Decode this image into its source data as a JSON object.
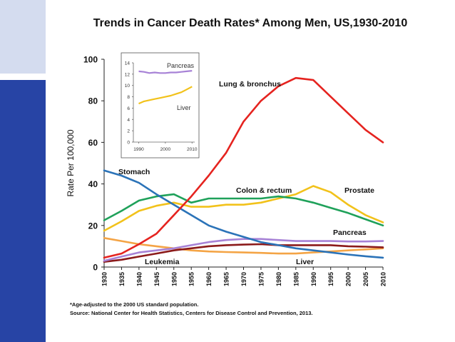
{
  "page": {
    "title": "Trends in Cancer Death Rates* Among Men, US,1930-2010",
    "footnote": "*Age-adjusted to the 2000 US standard population.",
    "source": "Source:  National Center for Health Statistics, Centers for Disease Control and Prevention, 2013."
  },
  "chart_data": [
    {
      "type": "line",
      "title": "Trends in Cancer Death Rates* Among Men, US,1930-2010",
      "xlabel": "",
      "ylabel": "Rate Per 100,000",
      "xlim": [
        1930,
        2010
      ],
      "ylim": [
        0,
        100
      ],
      "x_ticks": [
        "1930",
        "1935",
        "1940",
        "1945",
        "1950",
        "1955",
        "1960",
        "1965",
        "1970",
        "1975",
        "1980",
        "1985",
        "1990",
        "1995",
        "2000",
        "2005",
        "2010"
      ],
      "y_ticks": [
        "0",
        "20",
        "40",
        "60",
        "80",
        "100"
      ],
      "grid": false,
      "x": [
        1930,
        1935,
        1940,
        1945,
        1950,
        1955,
        1960,
        1965,
        1970,
        1975,
        1980,
        1985,
        1990,
        1995,
        2000,
        2005,
        2010
      ],
      "series": [
        {
          "name": "Lung & bronchus",
          "label": "Lung & bronchus",
          "color": "#e5231f",
          "values": [
            4.5,
            6.5,
            11,
            16,
            25,
            34,
            44,
            55,
            70,
            80,
            87,
            91,
            90,
            82,
            74,
            66,
            60
          ]
        },
        {
          "name": "Stomach",
          "label": "Stomach",
          "color": "#2b73b8",
          "values": [
            46.5,
            44,
            40.5,
            35,
            30,
            25,
            20,
            17,
            14.5,
            12,
            10.5,
            9,
            8,
            7,
            6,
            5.2,
            4.5
          ]
        },
        {
          "name": "Colon & rectum",
          "label": "Colon & rectum",
          "color": "#1fa15a",
          "values": [
            22.5,
            27,
            32,
            34,
            35,
            31,
            33,
            33,
            33,
            33,
            34,
            33,
            31,
            28.5,
            26,
            23,
            20
          ]
        },
        {
          "name": "Prostate",
          "label": "Prostate",
          "color": "#f2c21b",
          "values": [
            17.5,
            22,
            27,
            29.5,
            31,
            29,
            29,
            30,
            30,
            31,
            33,
            35,
            39,
            36,
            30,
            25,
            21.5
          ]
        },
        {
          "name": "Pancreas",
          "label": "Pancreas",
          "color": "#a782d6",
          "values": [
            3,
            5,
            7,
            8,
            9,
            10.5,
            12,
            13,
            13.5,
            13.5,
            13,
            12.5,
            12.5,
            12.5,
            12.3,
            12.3,
            12.5
          ]
        },
        {
          "name": "Leukemia",
          "label": "Leukemia",
          "color": "#8b1a1a",
          "values": [
            2.5,
            3.5,
            5,
            6.5,
            8,
            9,
            10,
            10.5,
            10.8,
            11,
            10.5,
            10.5,
            10.5,
            10.5,
            10,
            9.8,
            9.5
          ]
        },
        {
          "name": "Liver",
          "label": "Liver",
          "color": "#f4a445",
          "values": [
            14,
            12.5,
            11,
            10,
            9,
            8,
            7.5,
            7.2,
            7,
            6.8,
            6.5,
            6.5,
            7,
            7.5,
            8,
            8.5,
            9
          ]
        }
      ]
    },
    {
      "type": "line",
      "title": "",
      "xlabel": "",
      "ylabel": "",
      "xlim": [
        1988,
        2011
      ],
      "ylim": [
        0,
        14
      ],
      "x_ticks": [
        "1990",
        "2000",
        "2010"
      ],
      "y_ticks": [
        "0",
        "2",
        "4",
        "6",
        "8",
        "10",
        "12",
        "14"
      ],
      "grid": false,
      "x": [
        1990,
        1992,
        1994,
        1996,
        1998,
        2000,
        2002,
        2004,
        2006,
        2008,
        2010
      ],
      "series": [
        {
          "name": "Pancreas",
          "label": "Pancreas",
          "color": "#a782d6",
          "values": [
            12.5,
            12.4,
            12.2,
            12.3,
            12.2,
            12.2,
            12.3,
            12.3,
            12.4,
            12.5,
            12.6
          ]
        },
        {
          "name": "Liver",
          "label": "Liver",
          "color": "#f2c21b",
          "values": [
            6.8,
            7.2,
            7.4,
            7.6,
            7.8,
            8.0,
            8.2,
            8.5,
            8.8,
            9.3,
            9.8
          ]
        }
      ]
    }
  ]
}
